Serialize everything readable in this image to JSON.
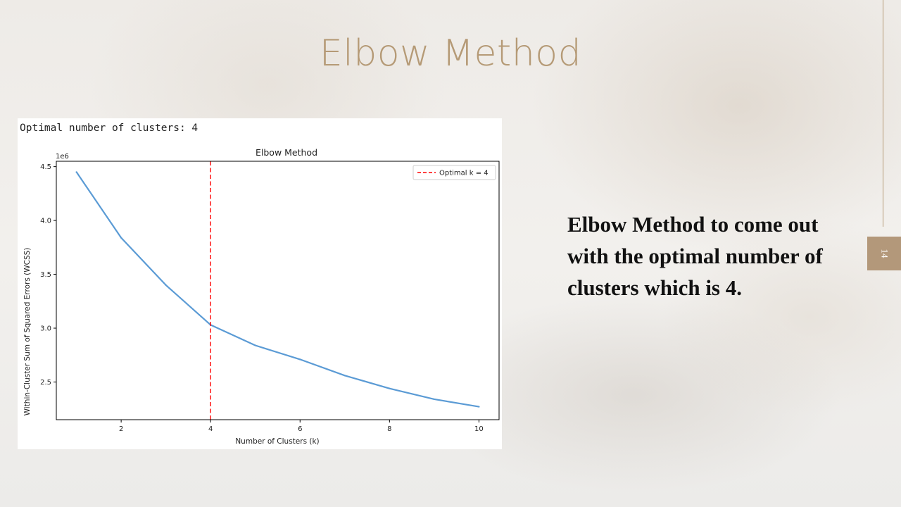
{
  "slide": {
    "title": "Elbow Method",
    "body_text": "Elbow Method to come out with the optimal number of clusters which is 4.",
    "page_number": "14",
    "accent_color": "#b59a76"
  },
  "output_text": "Optimal number of clusters: 4",
  "chart_data": {
    "type": "line",
    "title": "Elbow Method",
    "xlabel": "Number of Clusters (k)",
    "ylabel": "Within-Cluster Sum of Squared Errors (WCSS)",
    "y_offset_label": "1e6",
    "x": [
      1,
      2,
      3,
      4,
      5,
      6,
      7,
      8,
      9,
      10
    ],
    "series": [
      {
        "values": [
          4.45,
          3.84,
          3.4,
          3.03,
          2.84,
          2.71,
          2.56,
          2.44,
          2.34,
          2.27
        ],
        "color": "#5b9bd5"
      }
    ],
    "xlim": [
      0.55,
      10.45
    ],
    "ylim": [
      2.15,
      4.55
    ],
    "x_ticks": [
      2,
      4,
      6,
      8,
      10
    ],
    "y_ticks": [
      2.5,
      3.0,
      3.5,
      4.0,
      4.5
    ],
    "y_tick_labels": [
      "2.5",
      "3.0",
      "3.5",
      "4.0",
      "4.5"
    ],
    "vline": {
      "x": 4,
      "color": "#ff0000",
      "style": "dashed",
      "label": "Optimal k = 4"
    },
    "legend_position": "top-right",
    "grid": false
  }
}
